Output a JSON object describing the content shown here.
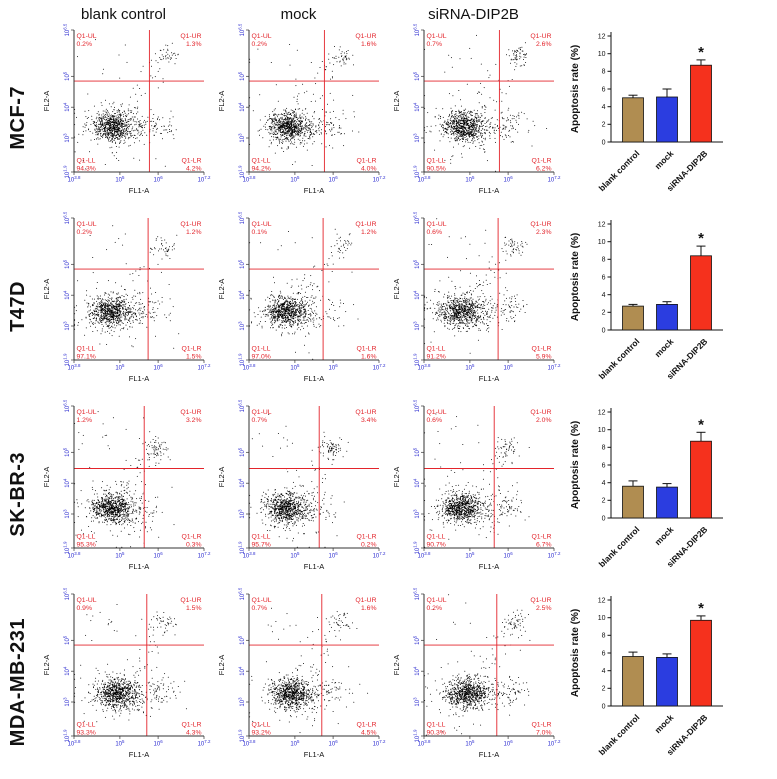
{
  "figure": {
    "col_headers": [
      "blank control",
      "mock",
      "siRNA-DIP2B"
    ],
    "colors": {
      "quadrant_red": "#e3242b",
      "tick_blue": "#2b2bd0",
      "scatter_point": "#000000"
    }
  },
  "chart_data": {
    "type": "composite",
    "flow_cytometry": {
      "type": "scatter",
      "x_label": "FL1-A",
      "y_label": "FL2-A",
      "scale": "log",
      "x_tick_exponents": [
        "3.8",
        "5",
        "6",
        "7.2"
      ],
      "y_tick_exponents": [
        "1.9",
        "3",
        "4",
        "5",
        "6.5"
      ],
      "quadrant_names": [
        "Q1-UL",
        "Q1-UR",
        "Q1-LL",
        "Q1-LR"
      ],
      "rows": [
        {
          "cell_line": "MCF-7",
          "conditions": [
            {
              "name": "blank control",
              "Q1-UL": 0.2,
              "Q1-UR": 1.3,
              "Q1-LL": 94.3,
              "Q1-LR": 4.2
            },
            {
              "name": "mock",
              "Q1-UL": 0.2,
              "Q1-UR": 1.6,
              "Q1-LL": 94.2,
              "Q1-LR": 4.0
            },
            {
              "name": "siRNA-DIP2B",
              "Q1-UL": 0.7,
              "Q1-UR": 2.6,
              "Q1-LL": 90.5,
              "Q1-LR": 6.2
            }
          ]
        },
        {
          "cell_line": "T47D",
          "conditions": [
            {
              "name": "blank control",
              "Q1-UL": 0.2,
              "Q1-UR": 1.2,
              "Q1-LL": 97.1,
              "Q1-LR": 1.5
            },
            {
              "name": "mock",
              "Q1-UL": 0.1,
              "Q1-UR": 1.2,
              "Q1-LL": 97.0,
              "Q1-LR": 1.6
            },
            {
              "name": "siRNA-DIP2B",
              "Q1-UL": 0.6,
              "Q1-UR": 2.3,
              "Q1-LL": 91.2,
              "Q1-LR": 5.9
            }
          ]
        },
        {
          "cell_line": "SK-BR-3",
          "conditions": [
            {
              "name": "blank control",
              "Q1-UL": 1.2,
              "Q1-UR": 3.2,
              "Q1-LL": 95.3,
              "Q1-LR": 0.3
            },
            {
              "name": "mock",
              "Q1-UL": 0.7,
              "Q1-UR": 3.4,
              "Q1-LL": 95.7,
              "Q1-LR": 0.2
            },
            {
              "name": "siRNA-DIP2B",
              "Q1-UL": 0.6,
              "Q1-UR": 2.0,
              "Q1-LL": 90.7,
              "Q1-LR": 6.7
            }
          ]
        },
        {
          "cell_line": "MDA-MB-231",
          "conditions": [
            {
              "name": "blank control",
              "Q1-UL": 0.9,
              "Q1-UR": 1.5,
              "Q1-LL": 93.3,
              "Q1-LR": 4.3
            },
            {
              "name": "mock",
              "Q1-UL": 0.7,
              "Q1-UR": 1.6,
              "Q1-LL": 93.2,
              "Q1-LR": 4.5
            },
            {
              "name": "siRNA-DIP2B",
              "Q1-UL": 0.2,
              "Q1-UR": 2.5,
              "Q1-LL": 90.3,
              "Q1-LR": 7.0
            }
          ]
        }
      ]
    },
    "bar_charts": {
      "type": "bar",
      "ylabel": "Apoptosis rate (%)",
      "ylim": [
        0,
        12
      ],
      "yticks": [
        0,
        2,
        4,
        6,
        8,
        10,
        12
      ],
      "categories": [
        "blank control",
        "mock",
        "siRNA-DIP2B"
      ],
      "colors": [
        "#b08d51",
        "#2b3de0",
        "#f5311d"
      ],
      "sig_label": "*",
      "rows": [
        {
          "cell_line": "MCF-7",
          "values": [
            5.0,
            5.1,
            8.7
          ],
          "errors": [
            0.3,
            0.9,
            0.6
          ],
          "significant": [
            false,
            false,
            true
          ]
        },
        {
          "cell_line": "T47D",
          "values": [
            2.7,
            2.9,
            8.4
          ],
          "errors": [
            0.2,
            0.3,
            1.1
          ],
          "significant": [
            false,
            false,
            true
          ]
        },
        {
          "cell_line": "SK-BR-3",
          "values": [
            3.6,
            3.5,
            8.7
          ],
          "errors": [
            0.6,
            0.4,
            1.0
          ],
          "significant": [
            false,
            false,
            true
          ]
        },
        {
          "cell_line": "MDA-MB-231",
          "values": [
            5.6,
            5.5,
            9.7
          ],
          "errors": [
            0.5,
            0.4,
            0.5
          ],
          "significant": [
            false,
            false,
            true
          ]
        }
      ]
    },
    "layout_hints": {
      "rows": [
        {
          "cross": [
            0.58,
            0.36
          ],
          "ll_center": [
            0.3,
            0.68
          ],
          "ur_center": [
            0.72,
            0.18
          ]
        },
        {
          "cross": [
            0.57,
            0.36
          ],
          "ll_center": [
            0.28,
            0.66
          ],
          "ur_center": [
            0.7,
            0.2
          ]
        },
        {
          "cross": [
            0.54,
            0.44
          ],
          "ll_center": [
            0.28,
            0.72
          ],
          "ur_center": [
            0.64,
            0.3
          ]
        },
        {
          "cross": [
            0.56,
            0.36
          ],
          "ll_center": [
            0.32,
            0.7
          ],
          "ur_center": [
            0.7,
            0.2
          ]
        }
      ]
    }
  }
}
